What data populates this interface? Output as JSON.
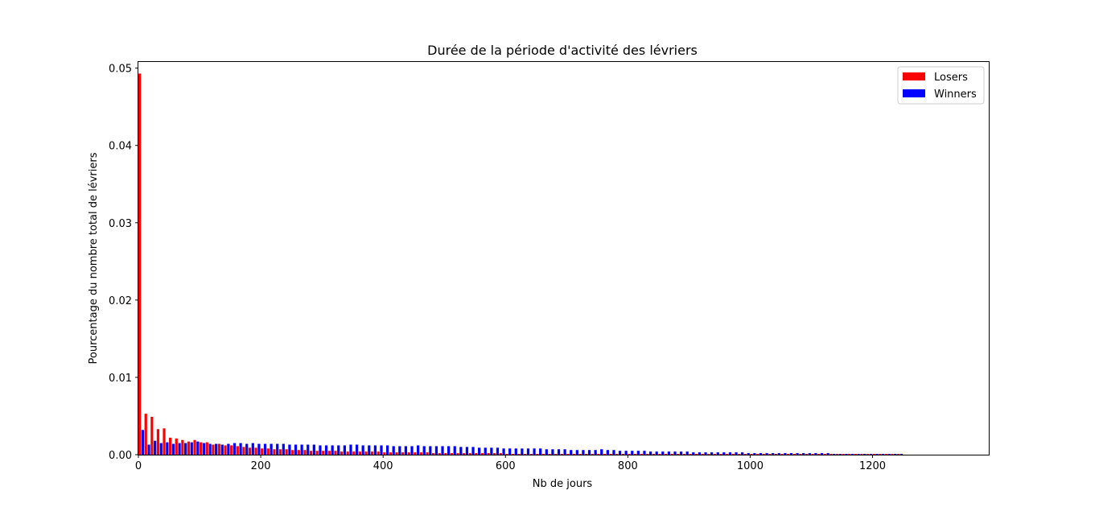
{
  "chart_data": {
    "type": "bar",
    "title": "Durée de la période d'activité des lévriers",
    "xlabel": "Nb de jours",
    "ylabel": "Pourcentage du nombre total de lévriers",
    "xlim": [
      0,
      1390
    ],
    "ylim": [
      0,
      0.0508
    ],
    "xticks": [
      0,
      200,
      400,
      600,
      800,
      1000,
      1200
    ],
    "xtick_labels": [
      "0",
      "200",
      "400",
      "600",
      "800",
      "1000",
      "1200"
    ],
    "yticks": [
      0.0,
      0.01,
      0.02,
      0.03,
      0.04,
      0.05
    ],
    "ytick_labels": [
      "0.00",
      "0.01",
      "0.02",
      "0.03",
      "0.04",
      "0.05"
    ],
    "bin_width": 10,
    "grid": false,
    "legend_position": "top-right",
    "x": [
      0,
      10,
      20,
      30,
      40,
      50,
      60,
      70,
      80,
      90,
      100,
      110,
      120,
      130,
      140,
      150,
      160,
      170,
      180,
      190,
      200,
      210,
      220,
      230,
      240,
      250,
      260,
      270,
      280,
      290,
      300,
      310,
      320,
      330,
      340,
      350,
      360,
      370,
      380,
      390,
      400,
      410,
      420,
      430,
      440,
      450,
      460,
      470,
      480,
      490,
      500,
      510,
      520,
      530,
      540,
      550,
      560,
      570,
      580,
      590,
      600,
      610,
      620,
      630,
      640,
      650,
      660,
      670,
      680,
      690,
      700,
      710,
      720,
      730,
      740,
      750,
      760,
      770,
      780,
      790,
      800,
      810,
      820,
      830,
      840,
      850,
      860,
      870,
      880,
      890,
      900,
      910,
      920,
      930,
      940,
      950,
      960,
      970,
      980,
      990,
      1000,
      1010,
      1020,
      1030,
      1040,
      1050,
      1060,
      1070,
      1080,
      1090,
      1100,
      1110,
      1120,
      1130,
      1140,
      1150,
      1160,
      1170,
      1180,
      1190,
      1200,
      1210,
      1220,
      1230,
      1240
    ],
    "series": [
      {
        "name": "Losers",
        "color": "#ff0000",
        "values": [
          0.0493,
          0.0053,
          0.0049,
          0.0033,
          0.0034,
          0.0022,
          0.0021,
          0.0019,
          0.0017,
          0.0019,
          0.0016,
          0.0016,
          0.0013,
          0.0014,
          0.0012,
          0.0012,
          0.0011,
          0.001,
          0.0009,
          0.0009,
          0.0008,
          0.0008,
          0.0007,
          0.0007,
          0.0007,
          0.0006,
          0.0006,
          0.0006,
          0.0005,
          0.0005,
          0.0005,
          0.0005,
          0.0005,
          0.0004,
          0.0004,
          0.0004,
          0.0004,
          0.0004,
          0.0004,
          0.0004,
          0.0003,
          0.0003,
          0.0003,
          0.0003,
          0.0003,
          0.0003,
          0.0003,
          0.0003,
          0.0002,
          0.0002,
          0.0002,
          0.0002,
          0.0002,
          0.0002,
          0.0002,
          0.0002,
          0.0002,
          0.0002,
          0.0002,
          0.0002,
          0.0001,
          0.0001,
          0.0001,
          0.0001,
          0.0001,
          0.0001,
          0.0001,
          0.0001,
          0.0001,
          0.0001,
          0.0001,
          0.0001,
          0.0001,
          0.0001,
          0.0001,
          0.0001,
          0.0001,
          0.0001,
          0.0001,
          0.0001,
          0.0001,
          0.0001,
          0.0001,
          0.0001,
          0.0001,
          0.0001,
          0.0001,
          0.0001,
          0.0001,
          0.0001,
          0.0001,
          0.0001,
          0.0001,
          0.0001,
          0.0001,
          0.0001,
          0.0001,
          0.0001,
          0.0001,
          0.0001,
          0.0001,
          0.0001,
          0.0001,
          0.0001,
          0.0001,
          0.0001,
          0.0001,
          0.0001,
          0.0001,
          0.0001,
          0.0001,
          0.0001,
          0.0001,
          0.0001,
          0.0001,
          0.0001,
          0.0001,
          0.0001,
          0.0001,
          0.0001,
          0.0001,
          0.0001,
          0.0001,
          0.0001,
          0.0001
        ]
      },
      {
        "name": "Winners",
        "color": "#0000ff",
        "values": [
          0.0032,
          0.0013,
          0.0018,
          0.0015,
          0.0016,
          0.0014,
          0.0015,
          0.0015,
          0.0016,
          0.0017,
          0.0015,
          0.0014,
          0.0014,
          0.0013,
          0.0014,
          0.0015,
          0.0015,
          0.0014,
          0.0015,
          0.0014,
          0.0014,
          0.0014,
          0.0014,
          0.0014,
          0.0013,
          0.0013,
          0.0013,
          0.0013,
          0.0013,
          0.0012,
          0.0012,
          0.0012,
          0.0012,
          0.0012,
          0.0013,
          0.0013,
          0.0012,
          0.0012,
          0.0012,
          0.0012,
          0.0012,
          0.0011,
          0.0011,
          0.0011,
          0.0011,
          0.0012,
          0.0011,
          0.0011,
          0.0011,
          0.0011,
          0.0011,
          0.0011,
          0.001,
          0.001,
          0.001,
          0.0009,
          0.0009,
          0.0009,
          0.0009,
          0.0008,
          0.0008,
          0.0008,
          0.0008,
          0.0008,
          0.0008,
          0.0008,
          0.0007,
          0.0007,
          0.0007,
          0.0007,
          0.0006,
          0.0006,
          0.0006,
          0.0006,
          0.0006,
          0.0007,
          0.0006,
          0.0006,
          0.0005,
          0.0005,
          0.0005,
          0.0005,
          0.0005,
          0.0004,
          0.0004,
          0.0004,
          0.0004,
          0.0004,
          0.0004,
          0.0004,
          0.0003,
          0.0003,
          0.0003,
          0.0003,
          0.0003,
          0.0003,
          0.0003,
          0.0003,
          0.0003,
          0.0002,
          0.0002,
          0.0002,
          0.0002,
          0.0002,
          0.0002,
          0.0002,
          0.0002,
          0.0002,
          0.0002,
          0.0002,
          0.0002,
          0.0002,
          0.0002,
          0.0001,
          0.0001,
          0.0001,
          0.0001,
          0.0001,
          0.0001,
          0.0001,
          0.0001,
          0.0001,
          0.0001,
          0.0001,
          0.0001
        ]
      }
    ]
  }
}
